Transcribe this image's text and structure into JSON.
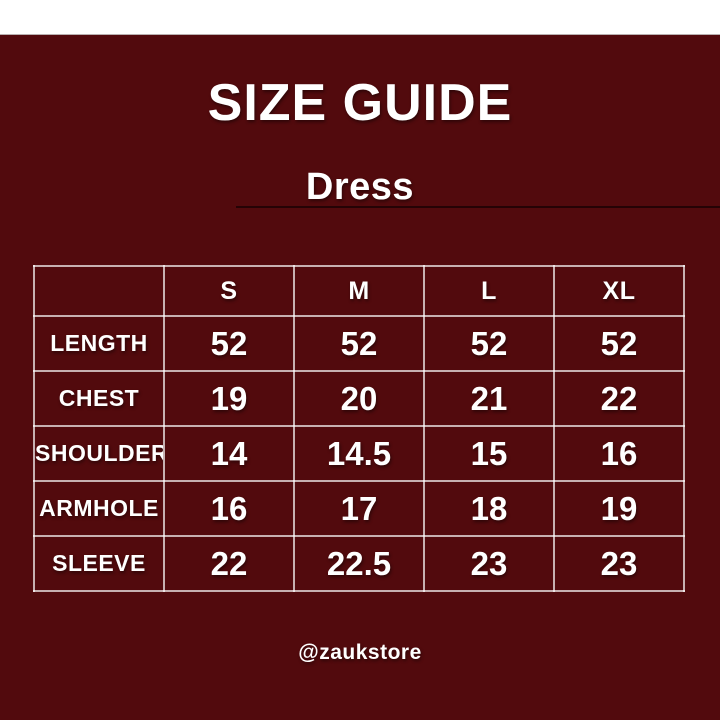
{
  "chart_data": {
    "type": "table",
    "title": "SIZE GUIDE",
    "subtitle": "Dress",
    "columns": [
      "",
      "S",
      "M",
      "L",
      "XL"
    ],
    "rows": [
      {
        "label": "LENGTH",
        "values": [
          "52",
          "52",
          "52",
          "52"
        ]
      },
      {
        "label": "CHEST",
        "values": [
          "19",
          "20",
          "21",
          "22"
        ]
      },
      {
        "label": "SHOULDER",
        "values": [
          "14",
          "14.5",
          "15",
          "16"
        ]
      },
      {
        "label": "ARMHOLE",
        "values": [
          "16",
          "17",
          "18",
          "19"
        ]
      },
      {
        "label": "SLEEVE",
        "values": [
          "22",
          "22.5",
          "23",
          "23"
        ]
      }
    ],
    "footer": "@zaukstore",
    "layout": {
      "grid": "on",
      "legend": "none"
    }
  },
  "colors": {
    "background": "#520a0d",
    "top_strip": "#ffffff",
    "text": "#ffffff",
    "table_border": "rgba(255,255,255,0.68)",
    "subtitle_line": "#250305"
  }
}
